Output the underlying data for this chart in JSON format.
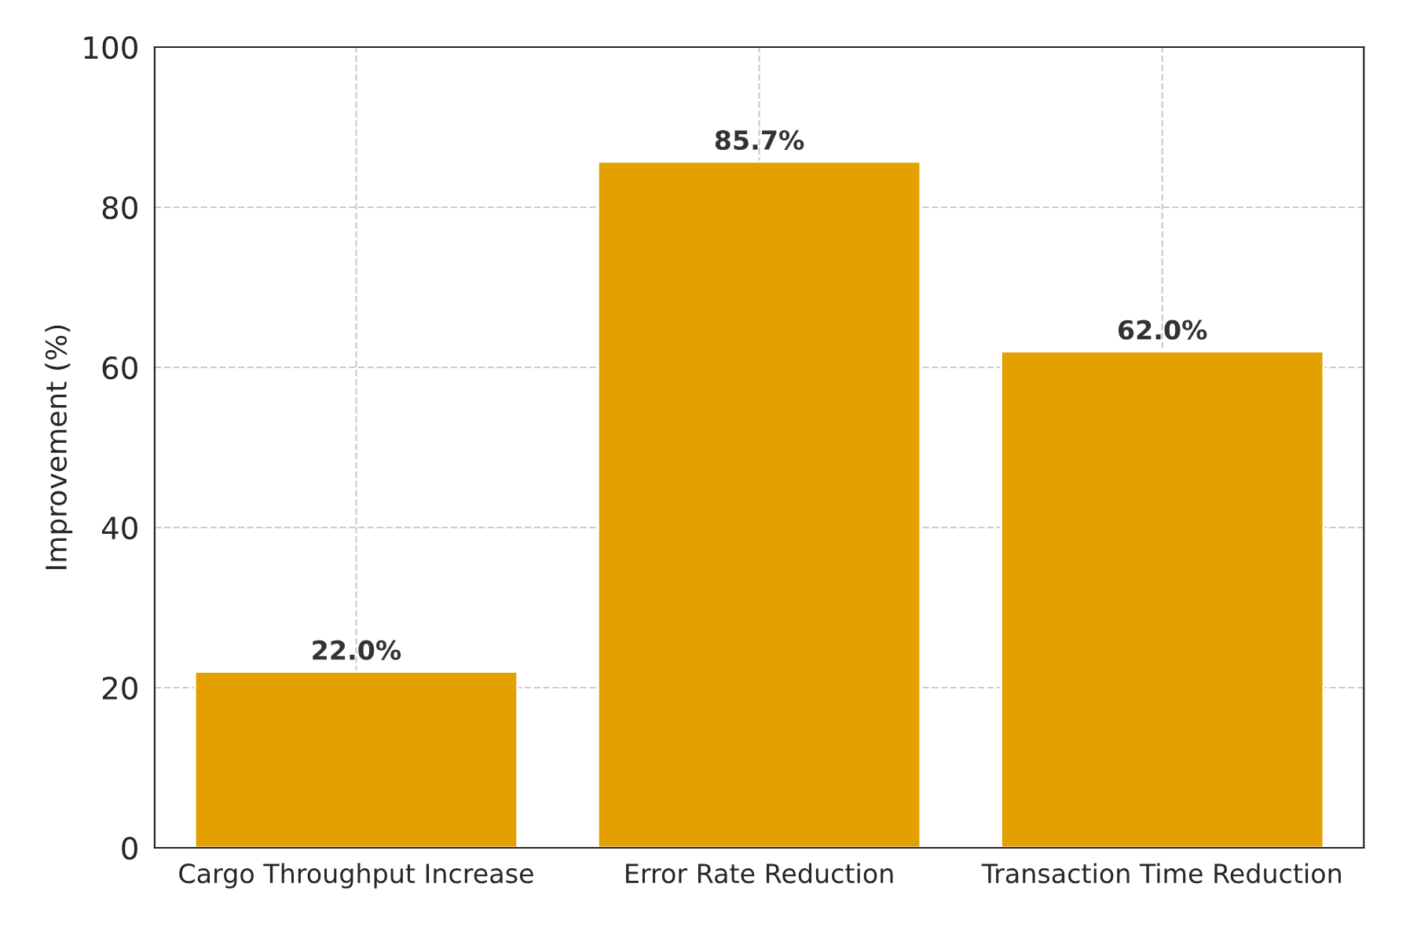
{
  "chart_data": {
    "type": "bar",
    "ylabel": "Improvement (%)",
    "categories": [
      "Cargo Throughput Increase",
      "Error Rate Reduction",
      "Transaction Time Reduction"
    ],
    "values": [
      22.0,
      85.7,
      62.0
    ],
    "color": "#e3a000",
    "value_labels": [
      "22.0%",
      "85.7%",
      "62.0%"
    ],
    "ylim": [
      0,
      100
    ],
    "yticks": [
      0,
      20,
      40,
      60,
      80,
      100
    ],
    "grid": true
  }
}
